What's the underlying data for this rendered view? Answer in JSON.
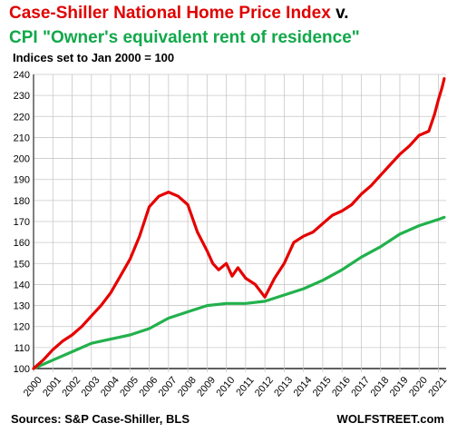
{
  "header": {
    "title_red": "Case-Shiller National Home Price Index",
    "title_connector": " v.",
    "title_green": "CPI \"Owner's equivalent rent of residence\"",
    "subtitle": "Indices set to Jan 2000 = 100"
  },
  "footer": {
    "source": "Sources: S&P Case-Shiller, BLS",
    "brand": "WOLFSTREET.com"
  },
  "colors": {
    "case_shiller": "#e60000",
    "oer": "#22b14c",
    "grid": "#c8c8c8"
  },
  "chart_data": {
    "type": "line",
    "ylim": [
      100,
      240
    ],
    "xlim": [
      2000,
      2021.4
    ],
    "grid": true,
    "yticks": [
      100,
      110,
      120,
      130,
      140,
      150,
      160,
      170,
      180,
      190,
      200,
      210,
      220,
      230,
      240
    ],
    "xticks": [
      "2000",
      "2001",
      "2002",
      "2003",
      "2004",
      "2005",
      "2006",
      "2007",
      "2008",
      "2009",
      "2010",
      "2011",
      "2012",
      "2013",
      "2014",
      "2015",
      "2016",
      "2017",
      "2018",
      "2019",
      "2020",
      "2021"
    ],
    "series": [
      {
        "name": "Case-Shiller National Home Price Index",
        "color": "#e60000",
        "x": [
          2000,
          2000.5,
          2001,
          2001.5,
          2002,
          2002.5,
          2003,
          2003.5,
          2004,
          2004.5,
          2005,
          2005.5,
          2006,
          2006.5,
          2007,
          2007.5,
          2008,
          2008.5,
          2009,
          2009.3,
          2009.6,
          2010,
          2010.3,
          2010.6,
          2011,
          2011.5,
          2012,
          2012.5,
          2013,
          2013.5,
          2014,
          2014.5,
          2015,
          2015.5,
          2016,
          2016.5,
          2017,
          2017.5,
          2018,
          2018.5,
          2019,
          2019.5,
          2020,
          2020.5,
          2020.8,
          2021,
          2021.2,
          2021.3
        ],
        "values": [
          100,
          104,
          109,
          113,
          116,
          120,
          125,
          130,
          136,
          144,
          152,
          163,
          177,
          182,
          184,
          182,
          178,
          165,
          156,
          150,
          147,
          150,
          144,
          148,
          143,
          140,
          134,
          143,
          150,
          160,
          163,
          165,
          169,
          173,
          175,
          178,
          183,
          187,
          192,
          197,
          202,
          206,
          211,
          213,
          221,
          228,
          234,
          238
        ]
      },
      {
        "name": "CPI \"Owner's equivalent rent of residence\"",
        "color": "#22b14c",
        "x": [
          2000,
          2001,
          2002,
          2003,
          2004,
          2005,
          2006,
          2007,
          2008,
          2009,
          2010,
          2011,
          2012,
          2013,
          2014,
          2015,
          2016,
          2017,
          2018,
          2019,
          2020,
          2021,
          2021.3
        ],
        "values": [
          100,
          104,
          108,
          112,
          114,
          116,
          119,
          124,
          127,
          130,
          131,
          131,
          132,
          135,
          138,
          142,
          147,
          153,
          158,
          164,
          168,
          171,
          172
        ]
      }
    ]
  }
}
